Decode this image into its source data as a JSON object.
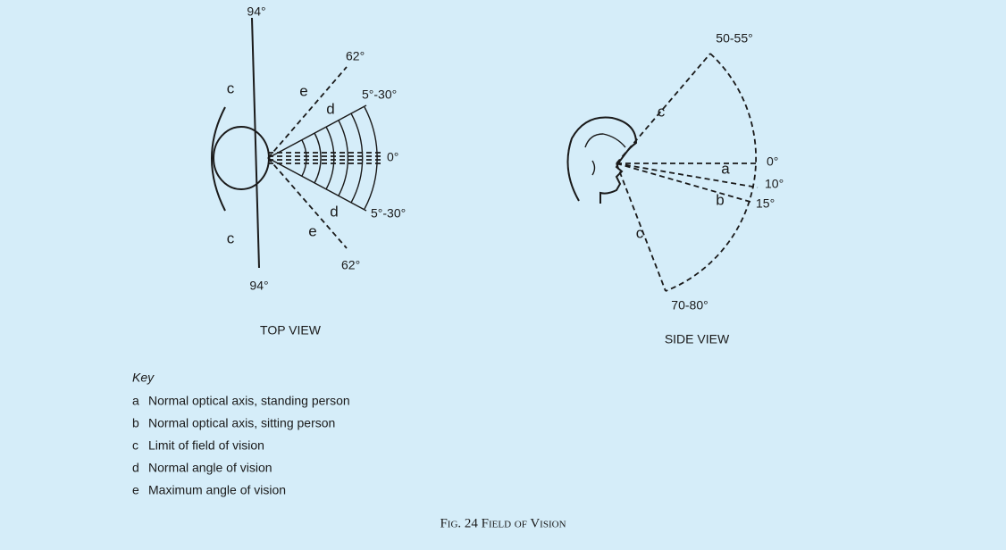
{
  "top_view": {
    "label": "TOP VIEW",
    "labels": [
      "94°",
      "c",
      "62°",
      "e",
      "5°-30°",
      "d",
      "0°",
      "d",
      "5°-30°",
      "e",
      "62°",
      "c",
      "94°"
    ]
  },
  "side_view": {
    "label": "SIDE VIEW",
    "labels": [
      "50-55°",
      "c",
      "0°",
      "a",
      "10°",
      "b",
      "15°",
      "c",
      "70-80°"
    ]
  },
  "key": {
    "title": "Key",
    "items": [
      {
        "letter": "a",
        "text": "Normal optical axis, standing person"
      },
      {
        "letter": "b",
        "text": "Normal optical axis, sitting person"
      },
      {
        "letter": "c",
        "text": "Limit of field of vision"
      },
      {
        "letter": "d",
        "text": "Normal angle of vision"
      },
      {
        "letter": "e",
        "text": "Maximum angle of vision"
      }
    ]
  },
  "caption": "Fig. 24 Field of Vision"
}
